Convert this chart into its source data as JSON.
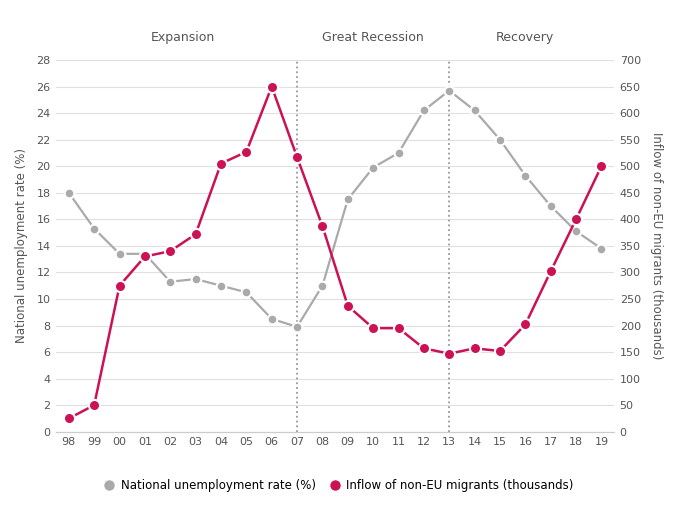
{
  "years": [
    "98",
    "99",
    "00",
    "01",
    "02",
    "03",
    "04",
    "05",
    "06",
    "07",
    "08",
    "09",
    "10",
    "11",
    "12",
    "13",
    "14",
    "15",
    "16",
    "17",
    "18",
    "19"
  ],
  "unemployment": [
    18.0,
    15.3,
    13.4,
    13.4,
    11.3,
    11.5,
    11.0,
    10.5,
    8.5,
    7.9,
    11.0,
    17.5,
    19.9,
    21.0,
    24.2,
    25.7,
    24.2,
    22.0,
    19.3,
    17.0,
    15.1,
    13.8
  ],
  "migrants_thousands": [
    25,
    50,
    275,
    330,
    340,
    372,
    505,
    527,
    650,
    517,
    387,
    237,
    195,
    195,
    157,
    147,
    157,
    152,
    202,
    302,
    400,
    500
  ],
  "vline_positions": [
    "07",
    "13"
  ],
  "period_labels": [
    "Expansion",
    "Great Recession",
    "Recovery"
  ],
  "unemployment_color": "#aaaaaa",
  "migrants_color": "#cc1155",
  "ylabel_left": "National unemployment rate (%)",
  "ylabel_right": "Inflow of non-EU migrants (thousands)",
  "ylim_left": [
    0,
    28
  ],
  "ylim_right": [
    0,
    700
  ],
  "yticks_left": [
    0,
    2,
    4,
    6,
    8,
    10,
    12,
    14,
    16,
    18,
    20,
    22,
    24,
    26,
    28
  ],
  "yticks_right": [
    0,
    50,
    100,
    150,
    200,
    250,
    300,
    350,
    400,
    450,
    500,
    550,
    600,
    650,
    700
  ],
  "background_color": "#ffffff",
  "grid_color": "#e0e0e0",
  "legend_label_unemp": "National unemployment rate (%)",
  "legend_label_migrant": "Inflow of non-EU migrants (thousands)"
}
